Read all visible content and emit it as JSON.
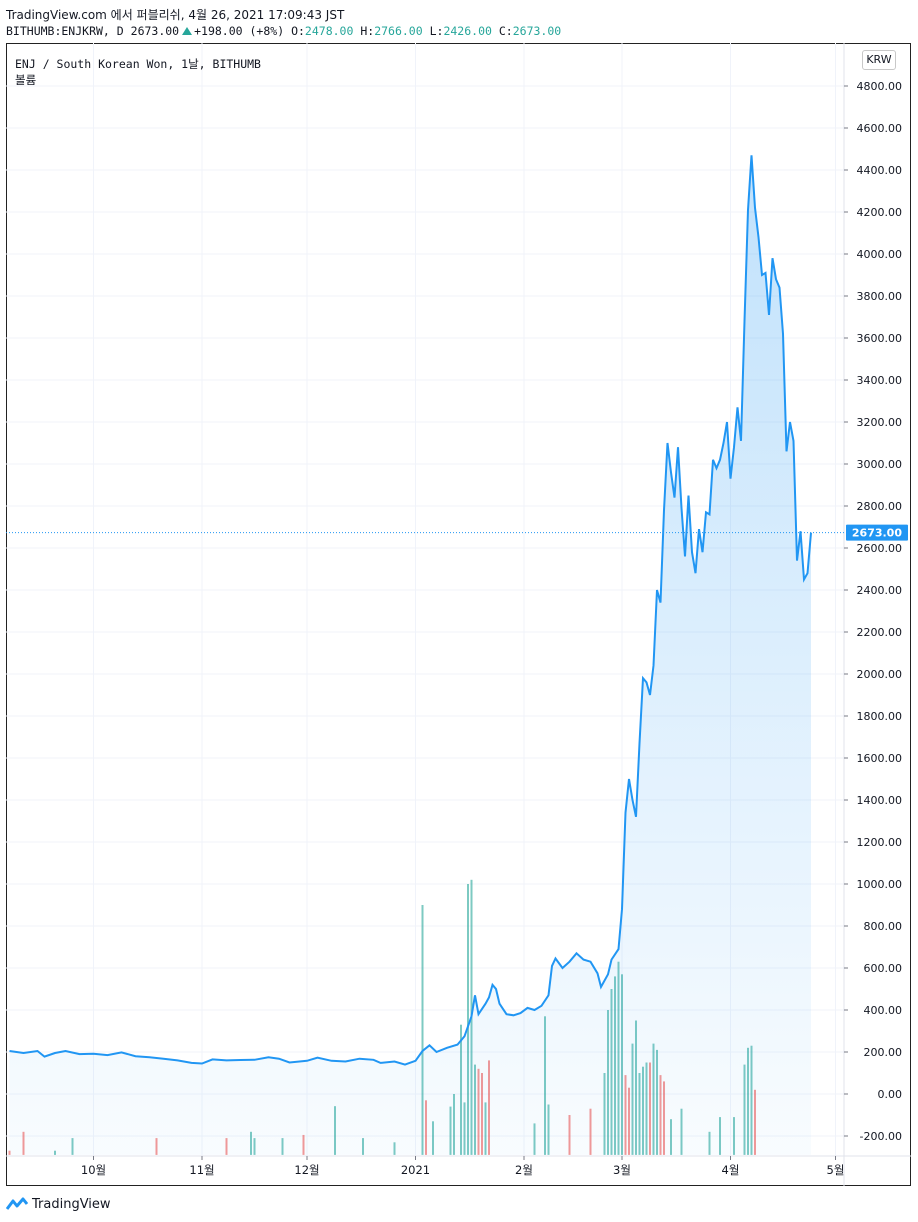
{
  "header": {
    "line1": "TradingView.com 에서 퍼블리쉬, 4월 26, 2021 17:09:43 JST",
    "symbol": "BITHUMB:ENJKRW, D",
    "last": "2673.00",
    "change": "+198.00 (+8%)",
    "o_label": "O:",
    "o_val": "2478.00",
    "h_label": "H:",
    "h_val": "2766.00",
    "l_label": "L:",
    "l_val": "2426.00",
    "c_label": "C:",
    "c_val": "2673.00"
  },
  "legend": {
    "title": "ENJ / South Korean Won, 1날, BITHUMB",
    "volume": "볼륨"
  },
  "currency_button": "KRW",
  "footer": {
    "brand": "TradingView"
  },
  "colors": {
    "line": "#2196f3",
    "up": "#26a69a",
    "down": "#ef5350",
    "grid": "#f0f3fa"
  },
  "chart_data": {
    "type": "area",
    "x_labels": [
      {
        "label": "10월",
        "day": 24
      },
      {
        "label": "11월",
        "day": 55
      },
      {
        "label": "12월",
        "day": 85
      },
      {
        "label": "2021",
        "day": 116
      },
      {
        "label": "2월",
        "day": 147
      },
      {
        "label": "3월",
        "day": 175
      },
      {
        "label": "4월",
        "day": 206
      },
      {
        "label": "5월",
        "day": 236
      }
    ],
    "y_ticks": [
      4800,
      4600,
      4400,
      4200,
      4000,
      3800,
      3600,
      3400,
      3200,
      3000,
      2800,
      2600,
      2400,
      2200,
      2000,
      1800,
      1600,
      1400,
      1200,
      1000,
      800,
      600,
      400,
      200,
      0,
      -200
    ],
    "ylim": [
      -300,
      4900
    ],
    "current_price": 2673.0,
    "current_price_label": "2673.00",
    "price": [
      [
        0,
        205
      ],
      [
        4,
        195
      ],
      [
        8,
        205
      ],
      [
        10,
        178
      ],
      [
        13,
        195
      ],
      [
        16,
        205
      ],
      [
        20,
        190
      ],
      [
        24,
        192
      ],
      [
        28,
        185
      ],
      [
        32,
        198
      ],
      [
        36,
        180
      ],
      [
        40,
        175
      ],
      [
        44,
        168
      ],
      [
        48,
        160
      ],
      [
        52,
        148
      ],
      [
        55,
        145
      ],
      [
        58,
        165
      ],
      [
        62,
        160
      ],
      [
        66,
        162
      ],
      [
        70,
        163
      ],
      [
        74,
        175
      ],
      [
        77,
        168
      ],
      [
        80,
        150
      ],
      [
        85,
        158
      ],
      [
        88,
        173
      ],
      [
        92,
        158
      ],
      [
        96,
        155
      ],
      [
        100,
        168
      ],
      [
        104,
        163
      ],
      [
        106,
        148
      ],
      [
        110,
        155
      ],
      [
        113,
        140
      ],
      [
        116,
        158
      ],
      [
        118,
        205
      ],
      [
        120,
        232
      ],
      [
        122,
        200
      ],
      [
        125,
        220
      ],
      [
        128,
        235
      ],
      [
        130,
        275
      ],
      [
        132,
        370
      ],
      [
        133,
        470
      ],
      [
        134,
        380
      ],
      [
        136,
        430
      ],
      [
        137,
        460
      ],
      [
        138,
        520
      ],
      [
        139,
        500
      ],
      [
        140,
        430
      ],
      [
        142,
        380
      ],
      [
        144,
        375
      ],
      [
        146,
        385
      ],
      [
        148,
        410
      ],
      [
        150,
        400
      ],
      [
        152,
        420
      ],
      [
        154,
        470
      ],
      [
        155,
        610
      ],
      [
        156,
        645
      ],
      [
        158,
        600
      ],
      [
        160,
        630
      ],
      [
        162,
        670
      ],
      [
        164,
        640
      ],
      [
        166,
        630
      ],
      [
        168,
        575
      ],
      [
        169,
        510
      ],
      [
        171,
        570
      ],
      [
        172,
        640
      ],
      [
        174,
        690
      ],
      [
        175,
        880
      ],
      [
        176,
        1340
      ],
      [
        177,
        1500
      ],
      [
        178,
        1400
      ],
      [
        179,
        1320
      ],
      [
        180,
        1670
      ],
      [
        181,
        1980
      ],
      [
        182,
        1960
      ],
      [
        183,
        1900
      ],
      [
        184,
        2040
      ],
      [
        185,
        2400
      ],
      [
        186,
        2340
      ],
      [
        187,
        2780
      ],
      [
        188,
        3100
      ],
      [
        189,
        2960
      ],
      [
        190,
        2840
      ],
      [
        191,
        3080
      ],
      [
        192,
        2790
      ],
      [
        193,
        2560
      ],
      [
        194,
        2850
      ],
      [
        195,
        2580
      ],
      [
        196,
        2480
      ],
      [
        197,
        2690
      ],
      [
        198,
        2580
      ],
      [
        199,
        2770
      ],
      [
        200,
        2760
      ],
      [
        201,
        3020
      ],
      [
        202,
        2980
      ],
      [
        203,
        3020
      ],
      [
        204,
        3100
      ],
      [
        205,
        3200
      ],
      [
        206,
        2930
      ],
      [
        207,
        3080
      ],
      [
        208,
        3270
      ],
      [
        209,
        3110
      ],
      [
        210,
        3680
      ],
      [
        211,
        4210
      ],
      [
        212,
        4470
      ],
      [
        213,
        4220
      ],
      [
        214,
        4080
      ],
      [
        215,
        3900
      ],
      [
        216,
        3910
      ],
      [
        217,
        3710
      ],
      [
        218,
        3980
      ],
      [
        219,
        3880
      ],
      [
        220,
        3840
      ],
      [
        221,
        3620
      ],
      [
        222,
        3060
      ],
      [
        223,
        3200
      ],
      [
        224,
        3110
      ],
      [
        225,
        2540
      ],
      [
        226,
        2680
      ],
      [
        227,
        2450
      ],
      [
        228,
        2480
      ],
      [
        229,
        2673
      ]
    ],
    "volume": [
      [
        0,
        -270,
        "down"
      ],
      [
        4,
        -180,
        "down"
      ],
      [
        13,
        -270,
        "up"
      ],
      [
        18,
        -210,
        "up"
      ],
      [
        42,
        -210,
        "down"
      ],
      [
        62,
        -210,
        "down"
      ],
      [
        69,
        -180,
        "up"
      ],
      [
        70,
        -210,
        "up"
      ],
      [
        78,
        -210,
        "up"
      ],
      [
        84,
        -195,
        "down"
      ],
      [
        93,
        -58,
        "up"
      ],
      [
        101,
        -210,
        "up"
      ],
      [
        110,
        -230,
        "up"
      ],
      [
        118,
        900,
        "up"
      ],
      [
        119,
        -30,
        "down"
      ],
      [
        121,
        -130,
        "up"
      ],
      [
        126,
        -60,
        "up"
      ],
      [
        127,
        0,
        "up"
      ],
      [
        129,
        330,
        "up"
      ],
      [
        130,
        -40,
        "up"
      ],
      [
        131,
        1000,
        "up"
      ],
      [
        132,
        1020,
        "up"
      ],
      [
        133,
        140,
        "up"
      ],
      [
        134,
        120,
        "down"
      ],
      [
        135,
        100,
        "down"
      ],
      [
        136,
        -40,
        "up"
      ],
      [
        137,
        160,
        "down"
      ],
      [
        150,
        -140,
        "up"
      ],
      [
        153,
        370,
        "up"
      ],
      [
        154,
        -50,
        "up"
      ],
      [
        160,
        -100,
        "down"
      ],
      [
        166,
        -70,
        "down"
      ],
      [
        170,
        100,
        "up"
      ],
      [
        171,
        400,
        "up"
      ],
      [
        172,
        500,
        "up"
      ],
      [
        173,
        560,
        "up"
      ],
      [
        174,
        630,
        "up"
      ],
      [
        175,
        570,
        "up"
      ],
      [
        176,
        90,
        "down"
      ],
      [
        177,
        30,
        "down"
      ],
      [
        178,
        240,
        "up"
      ],
      [
        179,
        350,
        "up"
      ],
      [
        180,
        100,
        "up"
      ],
      [
        181,
        130,
        "up"
      ],
      [
        182,
        150,
        "up"
      ],
      [
        183,
        150,
        "down"
      ],
      [
        184,
        240,
        "up"
      ],
      [
        185,
        210,
        "up"
      ],
      [
        186,
        90,
        "down"
      ],
      [
        187,
        60,
        "down"
      ],
      [
        189,
        -120,
        "up"
      ],
      [
        192,
        -70,
        "up"
      ],
      [
        200,
        -180,
        "up"
      ],
      [
        203,
        -110,
        "up"
      ],
      [
        207,
        -110,
        "up"
      ],
      [
        210,
        140,
        "up"
      ],
      [
        211,
        220,
        "up"
      ],
      [
        212,
        230,
        "up"
      ],
      [
        213,
        20,
        "down"
      ]
    ]
  }
}
